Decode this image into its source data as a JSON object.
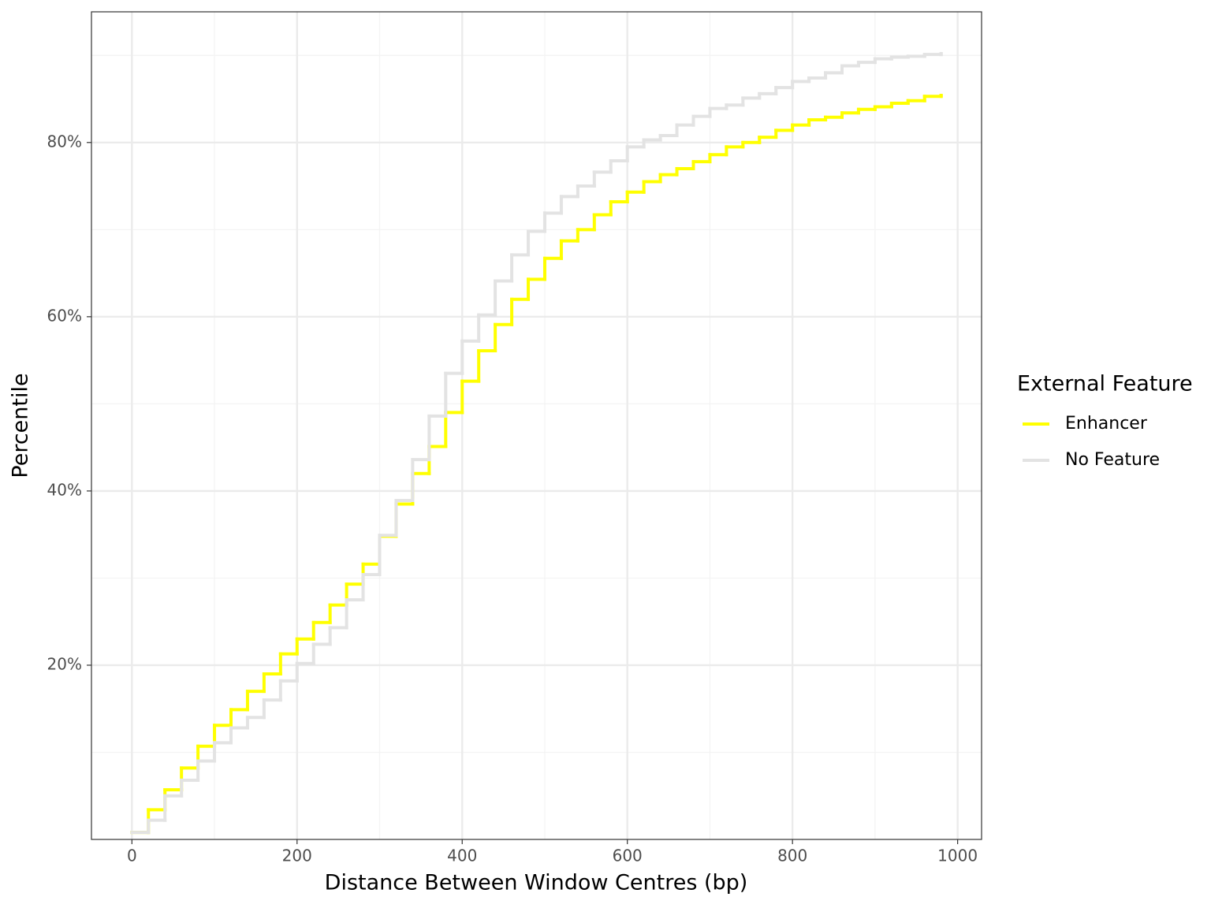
{
  "chart_data": {
    "type": "step",
    "x_label": "Distance Between Window Centres (bp)",
    "y_label": "Percentile",
    "legend_title": "External Feature",
    "legend_position": "right",
    "x": [
      0,
      20,
      40,
      60,
      80,
      100,
      120,
      140,
      160,
      180,
      200,
      220,
      240,
      260,
      280,
      300,
      320,
      340,
      360,
      380,
      400,
      420,
      440,
      460,
      480,
      500,
      520,
      540,
      560,
      580,
      600,
      620,
      640,
      660,
      680,
      700,
      720,
      740,
      760,
      780,
      800,
      820,
      840,
      860,
      880,
      900,
      920,
      940,
      960,
      980
    ],
    "series": [
      {
        "name": "Enhancer",
        "color": "#ffff00",
        "values": [
          0.8,
          3.4,
          5.7,
          8.2,
          10.7,
          13.1,
          14.9,
          17.0,
          19.0,
          21.3,
          23.0,
          24.9,
          26.9,
          29.3,
          31.6,
          34.8,
          38.5,
          42.0,
          45.1,
          49.0,
          52.6,
          56.1,
          59.1,
          62.0,
          64.3,
          66.7,
          68.7,
          70.0,
          71.7,
          73.2,
          74.3,
          75.5,
          76.3,
          77.0,
          77.8,
          78.6,
          79.5,
          80.0,
          80.6,
          81.4,
          82.0,
          82.6,
          82.9,
          83.4,
          83.8,
          84.1,
          84.5,
          84.8,
          85.3,
          85.4
        ]
      },
      {
        "name": "No Feature",
        "color": "#e3e3e3",
        "values": [
          0.8,
          2.2,
          5.0,
          6.8,
          9.0,
          11.1,
          12.8,
          14.0,
          16.0,
          18.2,
          20.2,
          22.4,
          24.3,
          27.5,
          30.4,
          34.9,
          38.9,
          43.6,
          48.6,
          53.5,
          57.2,
          60.2,
          64.1,
          67.1,
          69.8,
          71.9,
          73.8,
          75.0,
          76.6,
          77.9,
          79.5,
          80.3,
          80.8,
          82.0,
          83.0,
          83.9,
          84.3,
          85.1,
          85.6,
          86.3,
          87.0,
          87.4,
          88.0,
          88.8,
          89.2,
          89.6,
          89.8,
          89.9,
          90.1,
          90.2
        ]
      }
    ],
    "xlim": [
      -49,
      1029
    ],
    "ylim": [
      0,
      95
    ],
    "xticks": [
      0,
      200,
      400,
      600,
      800,
      1000
    ],
    "yticks": [
      {
        "value": 20,
        "label": "20%"
      },
      {
        "value": 40,
        "label": "40%"
      },
      {
        "value": 60,
        "label": "60%"
      },
      {
        "value": 80,
        "label": "80%"
      }
    ],
    "x_minor_ticks": [
      100,
      300,
      500,
      700,
      900
    ],
    "y_minor_ticks": [
      10,
      30,
      50,
      70,
      90
    ],
    "grid": true
  }
}
